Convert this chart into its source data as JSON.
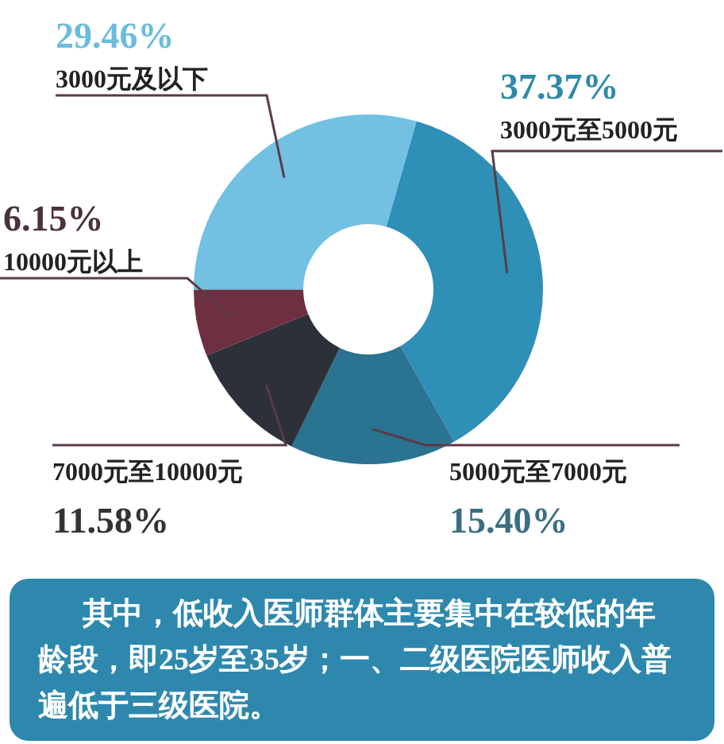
{
  "chart_data": {
    "type": "donut",
    "categories": [
      "3000元至5000元",
      "5000元至7000元",
      "7000元至10000元",
      "10000元以上",
      "3000元及以下"
    ],
    "values": [
      37.37,
      15.4,
      11.58,
      6.15,
      29.46
    ],
    "value_labels": [
      "37.37%",
      "15.40%",
      "11.58%",
      "6.15%",
      "29.46%"
    ],
    "colors": [
      "#2e8fb7",
      "#2a7391",
      "#2c3039",
      "#6e2f40",
      "#72c0e2"
    ],
    "legend": false,
    "annotations": [
      "其中，低收入医师群体主要集中在较低的年龄段，即25岁至35岁；一、二级医院医师收入普遍低于三级医院。"
    ]
  }
}
